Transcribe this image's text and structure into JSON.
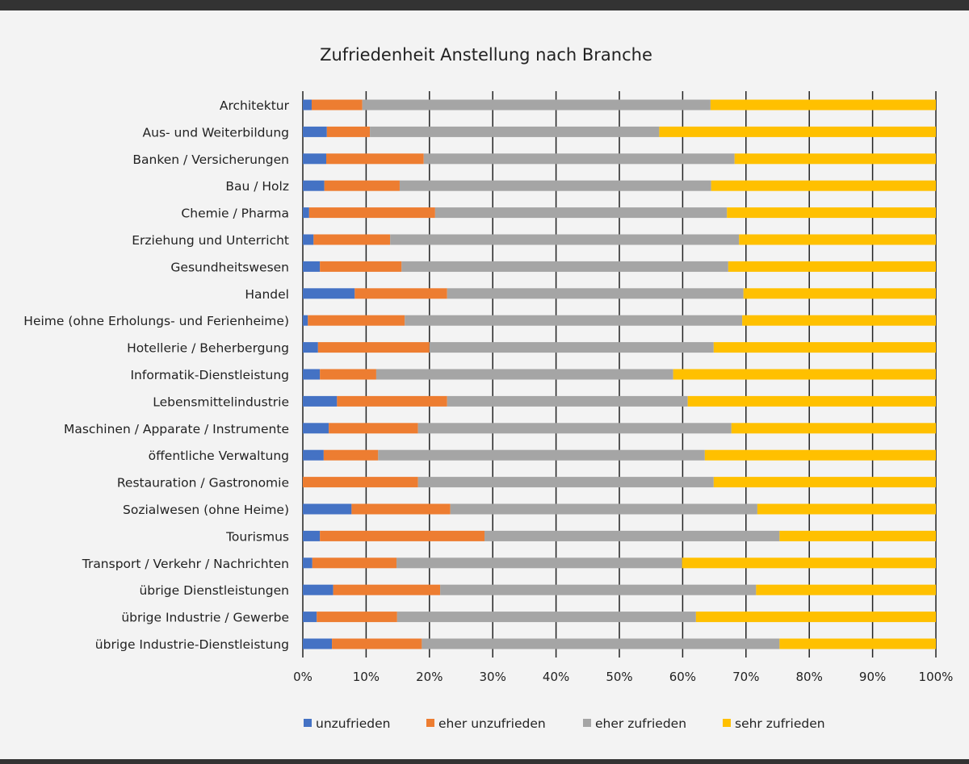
{
  "chart_data": {
    "type": "bar",
    "orientation": "horizontal",
    "stacked": "100%",
    "title": "Zufriedenheit Anstellung nach Branche",
    "categories": [
      "Architektur",
      "Aus- und Weiterbildung",
      "Banken / Versicherungen",
      "Bau / Holz",
      "Chemie / Pharma",
      "Erziehung und Unterricht",
      "Gesundheitswesen",
      "Handel",
      "Heime (ohne Erholungs- und Ferienheime)",
      "Hotellerie / Beherbergung",
      "Informatik-Dienstleistung",
      "Lebensmittelindustrie",
      "Maschinen / Apparate / Instrumente",
      "öffentliche Verwaltung",
      "Restauration / Gastronomie",
      "Sozialwesen (ohne Heime)",
      "Tourismus",
      "Transport / Verkehr / Nachrichten",
      "übrige Dienstleistungen",
      "übrige Industrie / Gewerbe",
      "übrige Industrie-Dienstleistung"
    ],
    "series": [
      {
        "name": "unzufrieden",
        "color": "#4472C4",
        "values": [
          1.4,
          3.8,
          3.7,
          3.4,
          1.0,
          1.7,
          2.7,
          8.2,
          0.8,
          2.4,
          2.7,
          5.4,
          4.1,
          3.3,
          0.0,
          7.7,
          2.7,
          1.5,
          4.8,
          2.2,
          4.6
        ]
      },
      {
        "name": "eher unzufrieden",
        "color": "#ED7D31",
        "values": [
          8.0,
          6.8,
          15.4,
          11.9,
          19.9,
          12.1,
          12.9,
          14.6,
          15.3,
          17.6,
          8.9,
          17.4,
          14.1,
          8.6,
          18.2,
          15.6,
          26.0,
          13.3,
          16.9,
          12.7,
          14.2
        ]
      },
      {
        "name": "eher zufrieden",
        "color": "#A5A5A5",
        "values": [
          55.0,
          45.7,
          49.1,
          49.2,
          46.1,
          55.1,
          51.6,
          46.8,
          53.3,
          44.9,
          46.9,
          38.0,
          49.5,
          51.6,
          46.7,
          48.5,
          46.6,
          45.1,
          49.9,
          47.2,
          56.5
        ]
      },
      {
        "name": "sehr zufrieden",
        "color": "#FFC000",
        "values": [
          35.6,
          43.7,
          31.8,
          35.5,
          33.0,
          31.1,
          32.8,
          30.4,
          30.6,
          35.1,
          41.5,
          39.2,
          32.3,
          36.5,
          35.1,
          28.2,
          24.7,
          40.1,
          28.4,
          37.9,
          24.7
        ]
      }
    ],
    "xlim": [
      0,
      100
    ],
    "xticks": [
      "0%",
      "10%",
      "20%",
      "30%",
      "40%",
      "50%",
      "60%",
      "70%",
      "80%",
      "90%",
      "100%"
    ],
    "grid": "vertical",
    "legend": "bottom"
  }
}
